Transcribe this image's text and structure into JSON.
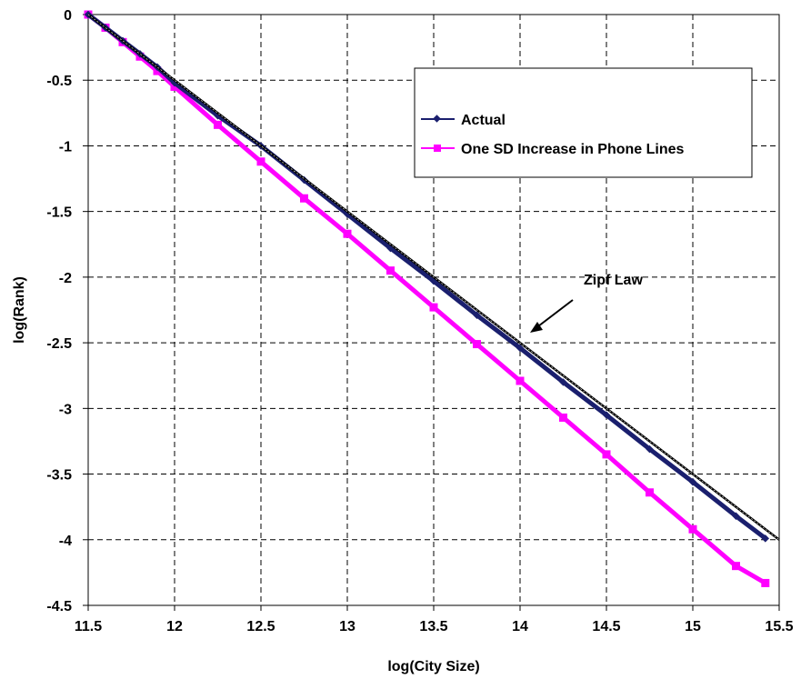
{
  "chart_data": {
    "type": "line",
    "xlabel": "log(City Size)",
    "ylabel": "log(Rank)",
    "xlim": [
      11.5,
      15.5
    ],
    "ylim": [
      -4.5,
      0
    ],
    "x_ticks": [
      "11.5",
      "12",
      "12.5",
      "13",
      "13.5",
      "14",
      "14.5",
      "15",
      "15.5"
    ],
    "y_ticks": [
      "0",
      "-0.5",
      "-1",
      "-1.5",
      "-2",
      "-2.5",
      "-3",
      "-3.5",
      "-4",
      "-4.5"
    ],
    "grid": true,
    "legend_position": "top-right",
    "series": [
      {
        "name": "Actual",
        "color": "#1a1f6e",
        "marker": "diamond",
        "x": [
          11.5,
          11.6,
          11.7,
          11.8,
          11.9,
          12.0,
          12.25,
          12.5,
          12.75,
          13.0,
          13.25,
          13.5,
          13.75,
          14.0,
          14.25,
          14.5,
          14.75,
          15.0,
          15.25,
          15.42
        ],
        "y": [
          0,
          -0.1,
          -0.2,
          -0.3,
          -0.4,
          -0.52,
          -0.77,
          -1.0,
          -1.26,
          -1.52,
          -1.78,
          -2.03,
          -2.29,
          -2.54,
          -2.8,
          -3.05,
          -3.31,
          -3.56,
          -3.82,
          -3.99
        ]
      },
      {
        "name": "One SD Increase in Phone Lines",
        "color": "#ff00ff",
        "marker": "square",
        "x": [
          11.5,
          11.6,
          11.7,
          11.8,
          11.9,
          12.0,
          12.25,
          12.5,
          12.75,
          13.0,
          13.25,
          13.5,
          13.75,
          14.0,
          14.25,
          14.5,
          14.75,
          15.0,
          15.25,
          15.42
        ],
        "y": [
          0,
          -0.1,
          -0.21,
          -0.32,
          -0.43,
          -0.55,
          -0.84,
          -1.12,
          -1.4,
          -1.67,
          -1.95,
          -2.23,
          -2.51,
          -2.79,
          -3.07,
          -3.35,
          -3.64,
          -3.92,
          -4.2,
          -4.33
        ]
      },
      {
        "name": "",
        "color": "#000000",
        "marker": "none",
        "style": "reference line",
        "x": [
          11.5,
          15.5
        ],
        "y": [
          0,
          -4.0
        ]
      }
    ],
    "annotations": [
      {
        "text": "Zipf Law",
        "arrow_to": {
          "x": 14.06,
          "y": -2.5
        },
        "text_at": {
          "x": 14.1,
          "y": -2.08
        }
      }
    ]
  }
}
